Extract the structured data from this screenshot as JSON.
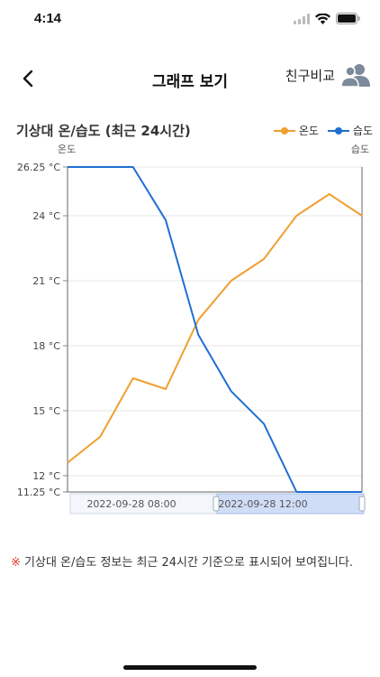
{
  "status_bar": {
    "time": "4:14"
  },
  "nav": {
    "back_label": "<",
    "title": "그래프 보기",
    "compare_label": "친구비교"
  },
  "chart_header": {
    "title": "기상대 온/습도 (최근 24시간)"
  },
  "colors": {
    "temperature": "#f0a030",
    "humidity": "#1f6fd1",
    "notice_mark": "#e0392f"
  },
  "chart_data": {
    "type": "line",
    "legend": [
      "온도",
      "습도"
    ],
    "y_left_name": "온도",
    "y_right_name": "습도",
    "y_ticks": [
      "26.25 °C",
      "24 °C",
      "21 °C",
      "18 °C",
      "15 °C",
      "12 °C",
      "11.25 °C"
    ],
    "ylim": [
      11.25,
      26.25
    ],
    "x_tick_labels": [
      "2022-09-28 08:00",
      "2022-09-28 12:00"
    ],
    "series": [
      {
        "name": "온도",
        "values": [
          12.6,
          13.8,
          16.5,
          16.0,
          19.2,
          21.0,
          22.0,
          24.0,
          25.0,
          24.0
        ]
      },
      {
        "name": "습도",
        "values": [
          26.25,
          26.25,
          26.25,
          23.8,
          18.5,
          15.9,
          14.4,
          11.25,
          11.25,
          11.25
        ]
      }
    ]
  },
  "notice": {
    "mark": "※",
    "text": " 기상대 온/습도 정보는 최근 24시간 기준으로 표시되어 보여집니다."
  }
}
